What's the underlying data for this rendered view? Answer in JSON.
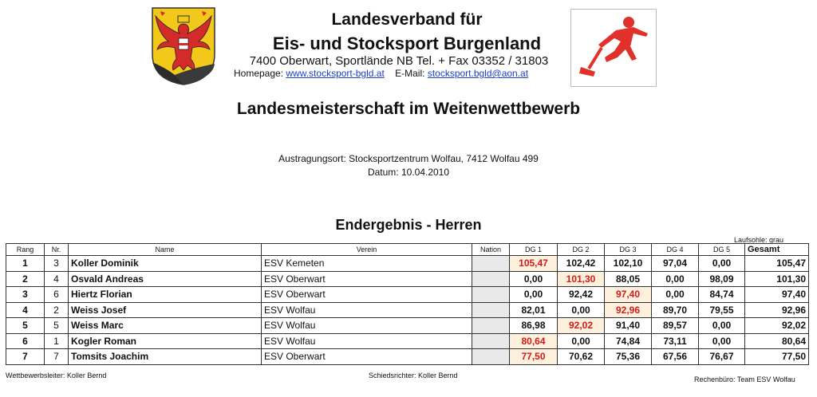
{
  "header": {
    "org_line1": "Landesverband für",
    "org_line2": "Eis- und Stocksport Burgenland",
    "address": "7400 Oberwart, Sportlände NB Tel. + Fax 03352 / 31803",
    "homepage_label": "Homepage:",
    "homepage_url": "www.stocksport-bgld.at",
    "email_label": "E-Mail:",
    "email": "stocksport.bgld@aon.at",
    "crest_icon": "burgenland-coat-of-arms-icon",
    "sport_icon": "stocksport-player-icon"
  },
  "event": {
    "title": "Landesmeisterschaft im Weitenwettbewerb",
    "venue": "Austragungsort: Stocksportzentrum Wolfau, 7412 Wolfau 499",
    "date": "Datum: 10.04.2010"
  },
  "results": {
    "title": "Endergebnis - Herren",
    "legend": "Laufsohle: grau",
    "columns": [
      "Rang",
      "Nr.",
      "Name",
      "Verein",
      "Nation",
      "DG 1",
      "DG 2",
      "DG 3",
      "DG 4",
      "DG 5",
      "Gesamt"
    ],
    "rows": [
      {
        "rang": "1",
        "nr": "3",
        "name": "Koller Dominik",
        "verein": "ESV Kemeten",
        "nation": "",
        "dg": [
          "105,47",
          "102,42",
          "102,10",
          "97,04",
          "0,00"
        ],
        "best": 0,
        "gesamt": "105,47"
      },
      {
        "rang": "2",
        "nr": "4",
        "name": "Osvald Andreas",
        "verein": "ESV Oberwart",
        "nation": "",
        "dg": [
          "0,00",
          "101,30",
          "88,05",
          "0,00",
          "98,09"
        ],
        "best": 1,
        "gesamt": "101,30"
      },
      {
        "rang": "3",
        "nr": "6",
        "name": "Hiertz Florian",
        "verein": "ESV Oberwart",
        "nation": "",
        "dg": [
          "0,00",
          "92,42",
          "97,40",
          "0,00",
          "84,74"
        ],
        "best": 2,
        "gesamt": "97,40"
      },
      {
        "rang": "4",
        "nr": "2",
        "name": "Weiss Josef",
        "verein": "ESV Wolfau",
        "nation": "",
        "dg": [
          "82,01",
          "0,00",
          "92,96",
          "89,70",
          "79,55"
        ],
        "best": 2,
        "gesamt": "92,96"
      },
      {
        "rang": "5",
        "nr": "5",
        "name": "Weiss Marc",
        "verein": "ESV Wolfau",
        "nation": "",
        "dg": [
          "86,98",
          "92,02",
          "91,40",
          "89,57",
          "0,00"
        ],
        "best": 1,
        "gesamt": "92,02"
      },
      {
        "rang": "6",
        "nr": "1",
        "name": "Kogler Roman",
        "verein": "ESV Wolfau",
        "nation": "",
        "dg": [
          "80,64",
          "0,00",
          "74,84",
          "73,11",
          "0,00"
        ],
        "best": 0,
        "gesamt": "80,64"
      },
      {
        "rang": "7",
        "nr": "7",
        "name": "Tomsits Joachim",
        "verein": "ESV Oberwart",
        "nation": "",
        "dg": [
          "77,50",
          "70,62",
          "75,36",
          "67,56",
          "76,67"
        ],
        "best": 0,
        "gesamt": "77,50"
      }
    ]
  },
  "footer": {
    "left": "Wettbewerbsleiter: Koller Bernd",
    "center": "Schiedsrichter: Koller Bernd",
    "right": "Rechenbüro: Team ESV Wolfau"
  },
  "colors": {
    "best_text": "#d11a1a",
    "best_fill": "#fdf0dc",
    "crest_gold": "#f2c81b",
    "eagle_red": "#d42a2a",
    "sport_red": "#e0322a"
  }
}
